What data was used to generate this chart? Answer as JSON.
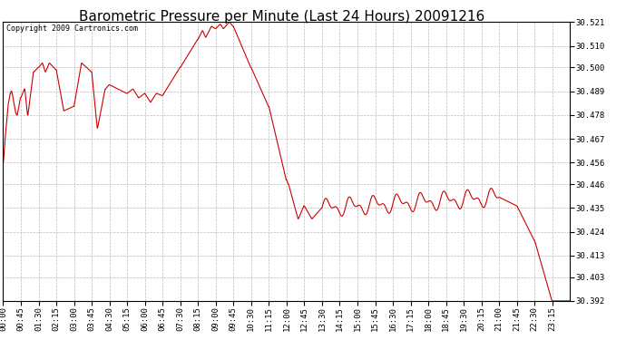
{
  "title": "Barometric Pressure per Minute (Last 24 Hours) 20091216",
  "copyright_text": "Copyright 2009 Cartronics.com",
  "line_color": "#cc0000",
  "background_color": "#ffffff",
  "grid_color": "#bbbbbb",
  "y_ticks": [
    30.392,
    30.403,
    30.413,
    30.424,
    30.435,
    30.446,
    30.456,
    30.467,
    30.478,
    30.489,
    30.5,
    30.51,
    30.521
  ],
  "ylim": [
    30.392,
    30.521
  ],
  "x_tick_labels": [
    "00:00",
    "00:45",
    "01:30",
    "02:15",
    "03:00",
    "03:45",
    "04:30",
    "05:15",
    "06:00",
    "06:45",
    "07:30",
    "08:15",
    "09:00",
    "09:45",
    "10:30",
    "11:15",
    "12:00",
    "12:45",
    "13:30",
    "14:15",
    "15:00",
    "15:45",
    "16:30",
    "17:15",
    "18:00",
    "18:45",
    "19:30",
    "20:15",
    "21:00",
    "21:45",
    "22:30",
    "23:15"
  ],
  "title_fontsize": 11,
  "axis_fontsize": 6.5,
  "copyright_fontsize": 6,
  "line_width": 0.8
}
